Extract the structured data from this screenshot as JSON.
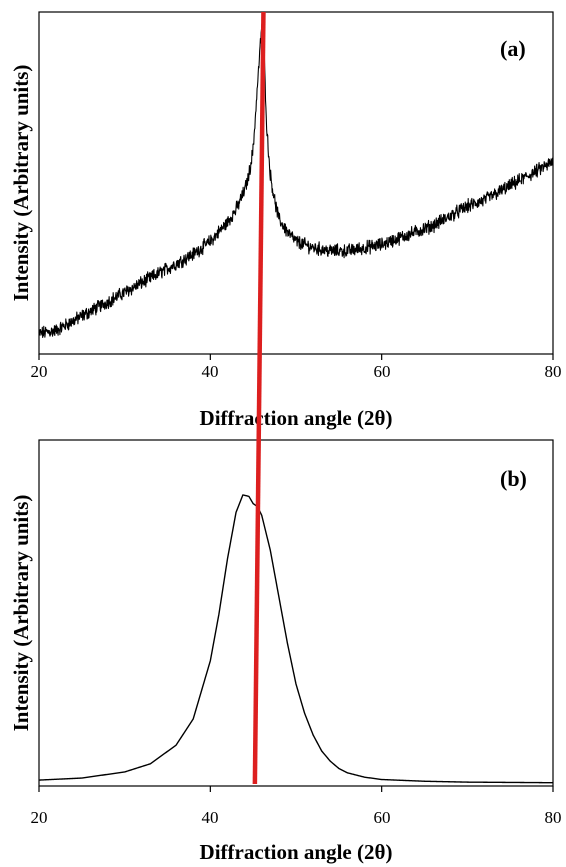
{
  "chart_data": [
    {
      "type": "line",
      "panel_label": "(a)",
      "xlabel": "Diffraction angle (2θ)",
      "ylabel": "Intensity (Arbitrary units)",
      "xlim": [
        20,
        80
      ],
      "x_ticks": [
        "20",
        "40",
        "60",
        "80"
      ],
      "y_tick_labels": false,
      "grid": false,
      "legend": "none",
      "line_color": "#000000",
      "noisy": true,
      "series": [
        {
          "x": [
            20,
            22,
            24,
            26,
            28,
            30,
            32,
            34,
            36,
            38,
            40,
            41,
            42,
            43,
            44,
            44.5,
            45,
            45.5,
            46,
            46.3,
            46.6,
            47,
            47.5,
            48,
            49,
            50,
            52,
            54,
            56,
            58,
            60,
            62,
            64,
            66,
            68,
            70,
            72,
            74,
            76,
            78,
            80
          ],
          "y": [
            0.02,
            0.03,
            0.06,
            0.09,
            0.12,
            0.15,
            0.18,
            0.21,
            0.24,
            0.27,
            0.31,
            0.34,
            0.37,
            0.41,
            0.47,
            0.52,
            0.6,
            0.8,
            0.99,
            0.88,
            0.66,
            0.52,
            0.44,
            0.38,
            0.34,
            0.31,
            0.29,
            0.28,
            0.28,
            0.29,
            0.3,
            0.32,
            0.34,
            0.36,
            0.39,
            0.42,
            0.44,
            0.47,
            0.5,
            0.53,
            0.56
          ]
        }
      ]
    },
    {
      "type": "line",
      "panel_label": "(b)",
      "xlabel": "Diffraction angle (2θ)",
      "ylabel": "Intensity (Arbitrary units)",
      "xlim": [
        20,
        80
      ],
      "x_ticks": [
        "20",
        "40",
        "60",
        "80"
      ],
      "y_tick_labels": false,
      "grid": false,
      "legend": "none",
      "line_color": "#000000",
      "noisy": false,
      "series": [
        {
          "x": [
            20,
            25,
            30,
            33,
            36,
            38,
            40,
            41,
            42,
            43,
            43.8,
            44.5,
            45,
            45.5,
            46,
            47,
            48,
            49,
            50,
            51,
            52,
            53,
            54,
            55,
            56,
            58,
            60,
            65,
            70,
            75,
            80
          ],
          "y": [
            0.01,
            0.017,
            0.038,
            0.066,
            0.13,
            0.22,
            0.42,
            0.58,
            0.77,
            0.93,
            0.99,
            0.985,
            0.96,
            0.95,
            0.92,
            0.8,
            0.64,
            0.48,
            0.34,
            0.24,
            0.165,
            0.11,
            0.075,
            0.05,
            0.035,
            0.02,
            0.012,
            0.006,
            0.003,
            0.002,
            0.001
          ]
        }
      ]
    }
  ],
  "overlay_line": {
    "color": "#dd1f1f",
    "top_x": 46.2,
    "bottom_x": 45.2
  }
}
